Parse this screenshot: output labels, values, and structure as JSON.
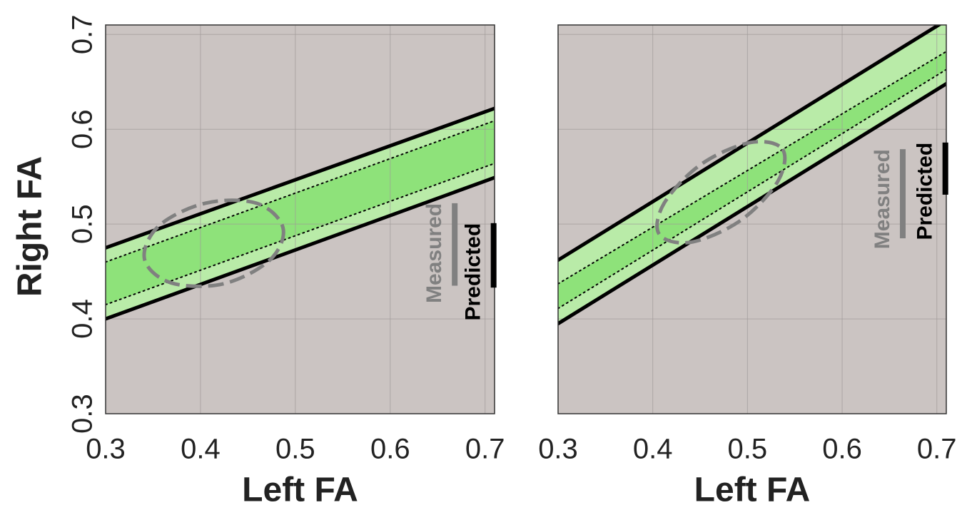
{
  "chart_data": [
    {
      "type": "band",
      "xlabel": "Left FA",
      "ylabel": "Right FA",
      "xlim": [
        0.3,
        0.71
      ],
      "ylim": [
        0.3,
        0.71
      ],
      "xticks": [
        0.3,
        0.4,
        0.5,
        0.6,
        0.7
      ],
      "yticks": [
        0.3,
        0.4,
        0.5,
        0.6,
        0.7
      ],
      "ytick_labels": true,
      "grid": true,
      "background": "#cbc4c2",
      "x": [
        0.3,
        0.71
      ],
      "series": [
        {
          "color": "#000000",
          "style": "solid",
          "values": [
            0.475,
            0.622
          ]
        },
        {
          "color": "#000000",
          "style": "dotted",
          "values": [
            0.46,
            0.609
          ]
        },
        {
          "color": "#000000",
          "style": "dotted",
          "values": [
            0.415,
            0.564
          ]
        },
        {
          "color": "#000000",
          "style": "solid",
          "values": [
            0.4,
            0.549
          ]
        }
      ],
      "band_colors": [
        "#b9eba8",
        "#8ee27a",
        "#b9eba8"
      ],
      "ellipse": {
        "color": "#808080",
        "x": [
          0.487,
          0.473,
          0.424,
          0.369,
          0.341,
          0.356,
          0.405,
          0.459
        ],
        "y": [
          0.496,
          0.462,
          0.437,
          0.438,
          0.463,
          0.498,
          0.522,
          0.522
        ]
      },
      "ranges": [
        {
          "name": "Measured",
          "color": "#808080",
          "x": 0.668,
          "y": [
            0.435,
            0.522
          ]
        },
        {
          "name": "Predicted",
          "color": "#000000",
          "x": 0.709,
          "y": [
            0.433,
            0.501
          ]
        }
      ]
    },
    {
      "type": "band",
      "xlabel": "Left FA",
      "xlim": [
        0.3,
        0.71
      ],
      "ylim": [
        0.3,
        0.71
      ],
      "xticks": [
        0.3,
        0.4,
        0.5,
        0.6,
        0.7
      ],
      "yticks": [
        0.3,
        0.4,
        0.5,
        0.6,
        0.7
      ],
      "ytick_labels": false,
      "grid": true,
      "background": "#cbc4c2",
      "x": [
        0.3,
        0.71
      ],
      "series": [
        {
          "color": "#000000",
          "style": "solid",
          "values": [
            0.462,
            0.715
          ]
        },
        {
          "color": "#000000",
          "style": "dotted",
          "values": [
            0.437,
            0.682
          ]
        },
        {
          "color": "#000000",
          "style": "dotted",
          "values": [
            0.411,
            0.663
          ]
        },
        {
          "color": "#000000",
          "style": "solid",
          "values": [
            0.395,
            0.648
          ]
        }
      ],
      "band_colors": [
        "#b9eba8",
        "#8ee27a",
        "#b9eba8"
      ],
      "ellipse": {
        "color": "#808080",
        "x": [
          0.537,
          0.532,
          0.493,
          0.441,
          0.407,
          0.412,
          0.451,
          0.503
        ],
        "y": [
          0.579,
          0.545,
          0.504,
          0.481,
          0.489,
          0.522,
          0.563,
          0.586
        ]
      },
      "ranges": [
        {
          "name": "Measured",
          "color": "#808080",
          "x": 0.664,
          "y": [
            0.485,
            0.579
          ]
        },
        {
          "name": "Predicted",
          "color": "#000000",
          "x": 0.709,
          "y": [
            0.531,
            0.586
          ]
        }
      ]
    }
  ]
}
